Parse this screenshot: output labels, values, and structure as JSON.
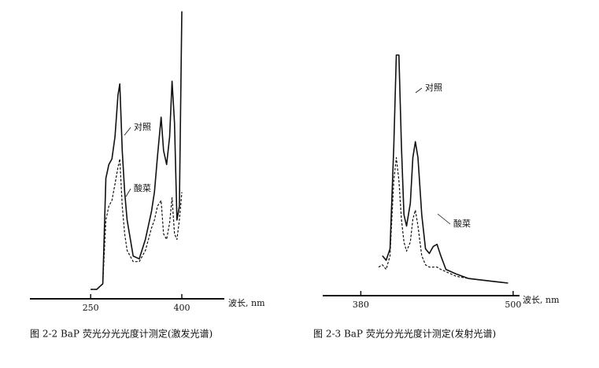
{
  "chart_data": [
    {
      "type": "line",
      "title": "图 2-2  BaP 荧光分光光度计测定(激发光谱)",
      "xlabel": "波长, nm",
      "x": [
        250,
        260,
        270,
        275,
        280,
        285,
        290,
        295,
        298,
        302,
        306,
        310,
        320,
        330,
        340,
        350,
        355,
        360,
        366,
        370,
        375,
        380,
        384,
        388,
        392,
        396,
        400,
        401
      ],
      "xlim": [
        150,
        470
      ],
      "xticks": [
        250,
        400
      ],
      "ylim": [
        0,
        100
      ],
      "series": [
        {
          "name": "对照",
          "color": "#111111",
          "line_style": "solid",
          "values": [
            0,
            0,
            2,
            40,
            45,
            47,
            55,
            70,
            74,
            50,
            35,
            25,
            12,
            11,
            18,
            28,
            35,
            48,
            62,
            50,
            45,
            55,
            75,
            60,
            25,
            30,
            100,
            100
          ]
        },
        {
          "name": "酸菜",
          "color": "#111111",
          "line_style": "dashed",
          "values": [
            0,
            0,
            2,
            25,
            30,
            32,
            38,
            44,
            47,
            30,
            20,
            14,
            10,
            10,
            14,
            22,
            25,
            30,
            32,
            20,
            18,
            24,
            33,
            20,
            18,
            25,
            35,
            null
          ]
        }
      ]
    },
    {
      "type": "line",
      "title": "图 2-3  BaP 荧光分光光度计测定(发射光谱)",
      "xlabel": "波长, nm",
      "x": [
        394,
        397,
        400,
        403,
        406,
        408,
        410,
        412,
        414,
        416,
        419,
        421,
        423,
        425,
        428,
        431,
        434,
        437,
        440,
        443,
        447,
        455,
        465,
        480,
        496
      ],
      "xlim": [
        350,
        505
      ],
      "xticks": [
        380,
        500
      ],
      "ylim": [
        0,
        100
      ],
      "series": [
        {
          "name": "对照",
          "color": "#111111",
          "line_style": "solid",
          "values": [
            null,
            12,
            10,
            15,
            60,
            100,
            100,
            60,
            30,
            25,
            35,
            55,
            62,
            55,
            30,
            15,
            13,
            16,
            17,
            12,
            6,
            4,
            2,
            1,
            0
          ]
        },
        {
          "name": "酸菜",
          "color": "#111111",
          "line_style": "dashed",
          "values": [
            7,
            8,
            6,
            12,
            45,
            55,
            45,
            28,
            18,
            14,
            18,
            28,
            32,
            25,
            12,
            8,
            7,
            7,
            7,
            6,
            5,
            3,
            2,
            1,
            0
          ]
        }
      ]
    }
  ]
}
